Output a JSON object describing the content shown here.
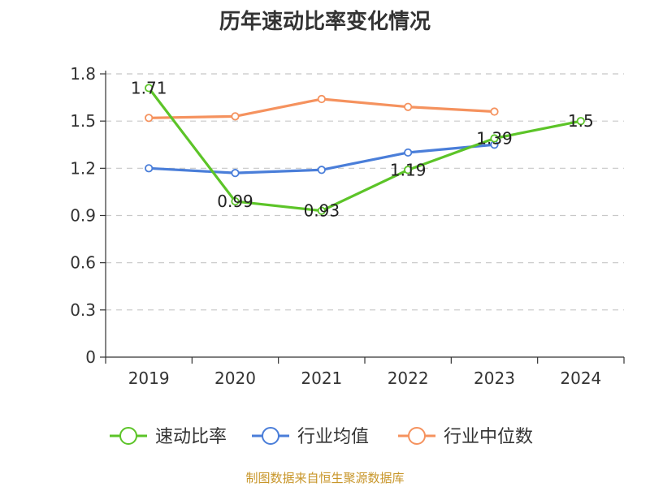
{
  "chart_data": {
    "type": "line",
    "title": "历年速动比率变化情况",
    "categories": [
      "2019",
      "2020",
      "2021",
      "2022",
      "2023",
      "2024"
    ],
    "ylim": [
      0,
      1.8
    ],
    "yticks": [
      "0",
      "0.3",
      "0.6",
      "0.9",
      "1.2",
      "1.5",
      "1.8"
    ],
    "grid": true,
    "legend_position": "bottom",
    "series": [
      {
        "name": "速动比率",
        "color": "#5cc428",
        "values": [
          1.71,
          0.99,
          0.93,
          1.19,
          1.39,
          1.5
        ],
        "labels": [
          "1.71",
          "0.99",
          "0.93",
          "1.19",
          "1.39",
          "1.5"
        ]
      },
      {
        "name": "行业均值",
        "color": "#4a7ed9",
        "values": [
          1.2,
          1.17,
          1.19,
          1.3,
          1.35,
          null
        ]
      },
      {
        "name": "行业中位数",
        "color": "#f5925e",
        "values": [
          1.52,
          1.53,
          1.64,
          1.59,
          1.56,
          null
        ]
      }
    ]
  },
  "footer": {
    "source": "制图数据来自恒生聚源数据库"
  }
}
